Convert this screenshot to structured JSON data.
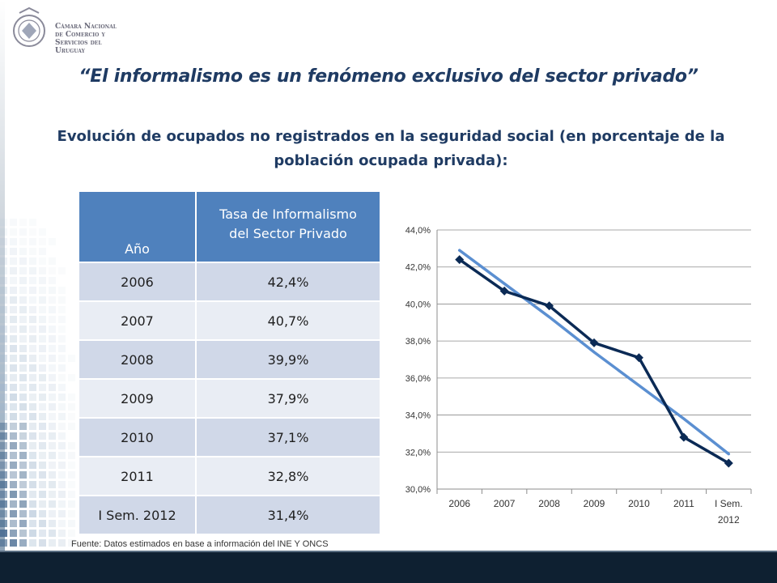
{
  "logo": {
    "lines": [
      "Cámara Nacional",
      "de Comercio y",
      "Servicios del",
      "Uruguay"
    ]
  },
  "title": "“El informalismo es un fenómeno exclusivo del sector privado”",
  "subtitle": {
    "line1": "Evolución de ocupados no registrados en la seguridad social (en porcentaje de la",
    "line2": "población ocupada privada):"
  },
  "table": {
    "header_year": "Año",
    "header_rate_line1": "Tasa de Informalismo",
    "header_rate_line2": "del Sector Privado",
    "rows": [
      {
        "year": "2006",
        "rate": "42,4%"
      },
      {
        "year": "2007",
        "rate": "40,7%"
      },
      {
        "year": "2008",
        "rate": "39,9%"
      },
      {
        "year": "2009",
        "rate": "37,9%"
      },
      {
        "year": "2010",
        "rate": "37,1%"
      },
      {
        "year": "2011",
        "rate": "32,8%"
      },
      {
        "year": "I Sem. 2012",
        "rate": "31,4%"
      }
    ]
  },
  "chart_data": {
    "type": "line",
    "categories": [
      "2006",
      "2007",
      "2008",
      "2009",
      "2010",
      "2011",
      "I Sem. 2012"
    ],
    "category_labels": [
      [
        "2006"
      ],
      [
        "2007"
      ],
      [
        "2008"
      ],
      [
        "2009"
      ],
      [
        "2010"
      ],
      [
        "2011"
      ],
      [
        "I Sem.",
        "2012"
      ]
    ],
    "series": [
      {
        "values": [
          42.4,
          40.7,
          39.9,
          37.9,
          37.1,
          32.8,
          31.4
        ],
        "color": "#0b2a55",
        "marker": "diamond"
      },
      {
        "values": [
          42.9,
          41.1,
          39.3,
          37.4,
          35.6,
          33.8,
          31.9
        ],
        "color": "#5b8fd1",
        "style": "trendline"
      }
    ],
    "ylim": [
      30,
      44
    ],
    "ytick_values": [
      30,
      32,
      34,
      36,
      38,
      40,
      42,
      44
    ],
    "ytick_labels": [
      "30,0%",
      "32,0%",
      "34,0%",
      "36,0%",
      "38,0%",
      "40,0%",
      "42,0%",
      "44,0%"
    ],
    "grid": true,
    "title": "",
    "xlabel": "",
    "ylabel": ""
  },
  "source": "Fuente: Datos estimados en base a información del INE Y ONCS",
  "colors": {
    "title": "#1f3b63",
    "table_header": "#4f81bd",
    "table_row_odd": "#d0d8e8",
    "table_row_even": "#e9edf4",
    "bottom_bar": "#0e2031"
  }
}
